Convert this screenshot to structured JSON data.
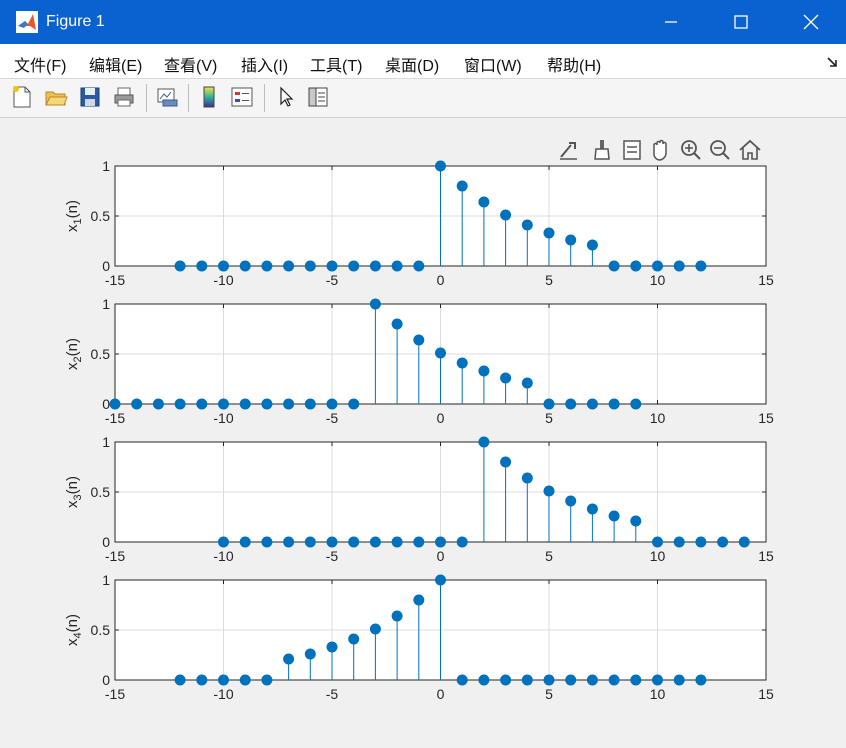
{
  "window": {
    "title": "Figure 1"
  },
  "menu": [
    "文件(F)",
    "编辑(E)",
    "查看(V)",
    "插入(I)",
    "工具(T)",
    "桌面(D)",
    "窗口(W)",
    "帮助(H)"
  ],
  "toolbar_icons": [
    "new-figure-icon",
    "open-file-icon",
    "save-icon",
    "print-icon",
    "link-plot-icon",
    "insert-colorbar-icon",
    "insert-legend-icon",
    "pointer-icon",
    "property-editor-icon"
  ],
  "axes_toolbar_icons": [
    "export-icon",
    "brush-icon",
    "data-tips-icon",
    "pan-hand-icon",
    "zoom-in-icon",
    "zoom-out-icon",
    "home-icon"
  ],
  "colors": {
    "stem": "#0072bd",
    "grid": "#dcdcdc",
    "axes_bg": "#ffffff",
    "titlebar": "#0a62d0"
  },
  "chart_data": [
    {
      "type": "stem",
      "ylabel_base": "x",
      "ylabel_sub": "1",
      "ylabel_suffix": "(n)",
      "xlim": [
        -15,
        15
      ],
      "ylim": [
        0,
        1
      ],
      "xticks": [
        -15,
        -10,
        -5,
        0,
        5,
        10,
        15
      ],
      "yticks": [
        0,
        0.5,
        1
      ],
      "grid": true,
      "x": [
        -12,
        -11,
        -10,
        -9,
        -8,
        -7,
        -6,
        -5,
        -4,
        -3,
        -2,
        -1,
        0,
        1,
        2,
        3,
        4,
        5,
        6,
        7,
        8,
        9,
        10,
        11,
        12
      ],
      "y": [
        0,
        0,
        0,
        0,
        0,
        0,
        0,
        0,
        0,
        0,
        0,
        0,
        1,
        0.8,
        0.64,
        0.51,
        0.41,
        0.33,
        0.26,
        0.21,
        0,
        0,
        0,
        0,
        0
      ]
    },
    {
      "type": "stem",
      "ylabel_base": "x",
      "ylabel_sub": "2",
      "ylabel_suffix": "(n)",
      "xlim": [
        -15,
        15
      ],
      "ylim": [
        0,
        1
      ],
      "xticks": [
        -15,
        -10,
        -5,
        0,
        5,
        10,
        15
      ],
      "yticks": [
        0,
        0.5,
        1
      ],
      "grid": true,
      "x": [
        -15,
        -14,
        -13,
        -12,
        -11,
        -10,
        -9,
        -8,
        -7,
        -6,
        -5,
        -4,
        -3,
        -2,
        -1,
        0,
        1,
        2,
        3,
        4,
        5,
        6,
        7,
        8,
        9
      ],
      "y": [
        0,
        0,
        0,
        0,
        0,
        0,
        0,
        0,
        0,
        0,
        0,
        0,
        1,
        0.8,
        0.64,
        0.51,
        0.41,
        0.33,
        0.26,
        0.21,
        0,
        0,
        0,
        0,
        0
      ]
    },
    {
      "type": "stem",
      "ylabel_base": "x",
      "ylabel_sub": "3",
      "ylabel_suffix": "(n)",
      "xlim": [
        -15,
        15
      ],
      "ylim": [
        0,
        1
      ],
      "xticks": [
        -15,
        -10,
        -5,
        0,
        5,
        10,
        15
      ],
      "yticks": [
        0,
        0.5,
        1
      ],
      "grid": true,
      "x": [
        -10,
        -9,
        -8,
        -7,
        -6,
        -5,
        -4,
        -3,
        -2,
        -1,
        0,
        1,
        2,
        3,
        4,
        5,
        6,
        7,
        8,
        9,
        10,
        11,
        12,
        13,
        14
      ],
      "y": [
        0,
        0,
        0,
        0,
        0,
        0,
        0,
        0,
        0,
        0,
        0,
        0,
        1,
        0.8,
        0.64,
        0.51,
        0.41,
        0.33,
        0.26,
        0.21,
        0,
        0,
        0,
        0,
        0
      ]
    },
    {
      "type": "stem",
      "ylabel_base": "x",
      "ylabel_sub": "4",
      "ylabel_suffix": "(n)",
      "xlim": [
        -15,
        15
      ],
      "ylim": [
        0,
        1
      ],
      "xticks": [
        -15,
        -10,
        -5,
        0,
        5,
        10,
        15
      ],
      "yticks": [
        0,
        0.5,
        1
      ],
      "grid": true,
      "x": [
        -12,
        -11,
        -10,
        -9,
        -8,
        -7,
        -6,
        -5,
        -4,
        -3,
        -2,
        -1,
        0,
        1,
        2,
        3,
        4,
        5,
        6,
        7,
        8,
        9,
        10,
        11,
        12
      ],
      "y": [
        0,
        0,
        0,
        0,
        0,
        0.21,
        0.26,
        0.33,
        0.41,
        0.51,
        0.64,
        0.8,
        1,
        0,
        0,
        0,
        0,
        0,
        0,
        0,
        0,
        0,
        0,
        0,
        0
      ]
    }
  ]
}
